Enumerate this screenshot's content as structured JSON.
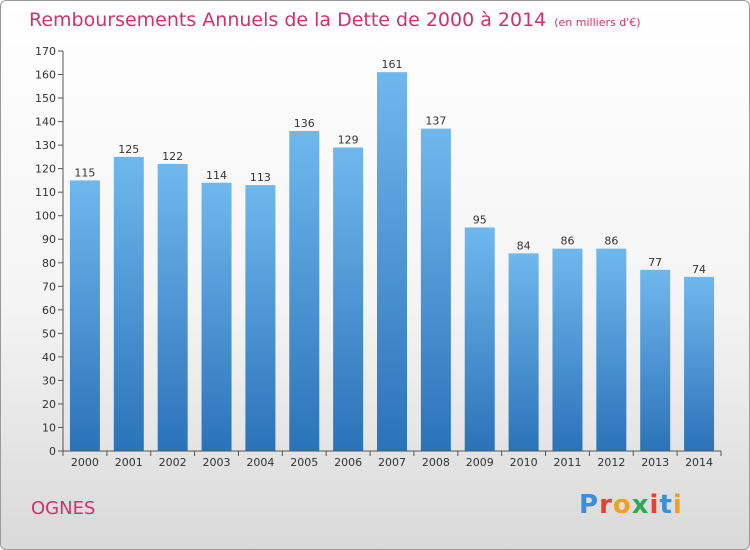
{
  "title": "Remboursements Annuels de la Dette de 2000 à 2014",
  "unit_note": "(en milliers d'€)",
  "commune": "OGNES",
  "logo": {
    "text": "Proxiti",
    "letter_colors": [
      "#3b8fd6",
      "#e8402e",
      "#f0a020",
      "#2fa84f",
      "#e8402e",
      "#3b8fd6",
      "#f0a020"
    ]
  },
  "colors": {
    "bar_top": "#6fb8ee",
    "bar_bottom": "#2b73b8",
    "title": "#d0316d",
    "axis": "#555555"
  },
  "chart_data": {
    "type": "bar",
    "categories": [
      "2000",
      "2001",
      "2002",
      "2003",
      "2004",
      "2005",
      "2006",
      "2007",
      "2008",
      "2009",
      "2010",
      "2011",
      "2012",
      "2013",
      "2014"
    ],
    "values": [
      115,
      125,
      122,
      114,
      113,
      136,
      129,
      161,
      137,
      95,
      84,
      86,
      86,
      77,
      74
    ],
    "ylim": [
      0,
      170
    ],
    "yticks": [
      0,
      10,
      20,
      30,
      40,
      50,
      60,
      70,
      80,
      90,
      100,
      110,
      120,
      130,
      140,
      150,
      160,
      170
    ],
    "grid": false
  }
}
